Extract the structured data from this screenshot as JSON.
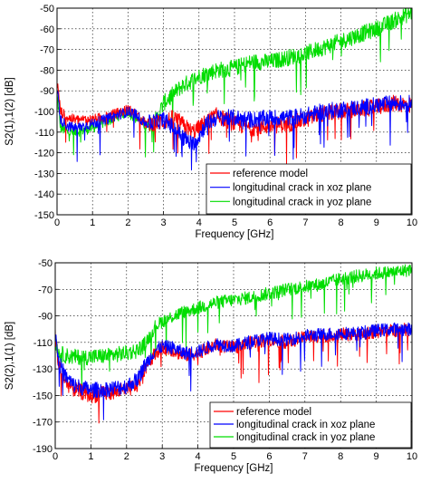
{
  "chart_data": [
    {
      "type": "line",
      "xlabel": "Frequency [GHz]",
      "ylabel": "S2(1),1(2) [dB]",
      "xlim": [
        0,
        10
      ],
      "ylim": [
        -150,
        -50
      ],
      "xticks": [
        "0",
        "1",
        "2",
        "3",
        "4",
        "5",
        "6",
        "7",
        "8",
        "9",
        "10"
      ],
      "yticks": [
        "-150",
        "-140",
        "-130",
        "-120",
        "-110",
        "-100",
        "-90",
        "-80",
        "-70",
        "-60",
        "-50"
      ],
      "grid": true,
      "legend_position": "bottom-right",
      "series": [
        {
          "name": "reference model",
          "color": "#ff0000",
          "x": [
            0,
            0.1,
            0.3,
            0.5,
            1.0,
            1.5,
            2.0,
            2.2,
            2.5,
            3.0,
            3.3,
            3.6,
            3.8,
            4.0,
            4.2,
            4.5,
            5.0,
            5.5,
            6.0,
            6.5,
            7.0,
            7.5,
            8.0,
            8.5,
            9.0,
            9.5,
            10.0
          ],
          "y": [
            -85,
            -100,
            -103,
            -104,
            -104,
            -102,
            -99,
            -101,
            -106,
            -105,
            -103,
            -107,
            -110,
            -108,
            -105,
            -102,
            -106,
            -108,
            -107,
            -106,
            -104,
            -101,
            -100,
            -99,
            -98,
            -96,
            -97
          ]
        },
        {
          "name": "longitudinal crack in xoz plane",
          "color": "#0000ff",
          "x": [
            0,
            0.1,
            0.3,
            0.5,
            1.0,
            1.5,
            2.0,
            2.2,
            2.5,
            3.0,
            3.3,
            3.6,
            3.8,
            4.0,
            4.2,
            4.5,
            5.0,
            5.5,
            6.0,
            6.5,
            7.0,
            7.5,
            8.0,
            8.5,
            9.0,
            9.5,
            10.0
          ],
          "y": [
            -88,
            -104,
            -107,
            -108,
            -106,
            -103,
            -100,
            -101,
            -106,
            -104,
            -108,
            -113,
            -116,
            -112,
            -106,
            -103,
            -103,
            -104,
            -103,
            -103,
            -102,
            -100,
            -99,
            -98,
            -97,
            -96,
            -96
          ]
        },
        {
          "name": "longitudinal crack in yoz plane",
          "color": "#00dd00",
          "x": [
            0,
            0.1,
            0.3,
            0.5,
            1.0,
            1.5,
            2.0,
            2.2,
            2.5,
            2.8,
            3.0,
            3.5,
            4.0,
            4.5,
            5.0,
            5.5,
            6.0,
            6.5,
            7.0,
            7.5,
            8.0,
            8.5,
            9.0,
            9.5,
            10.0
          ],
          "y": [
            -92,
            -108,
            -110,
            -110,
            -108,
            -104,
            -100,
            -103,
            -107,
            -104,
            -96,
            -88,
            -83,
            -80,
            -79,
            -76,
            -76,
            -74,
            -72,
            -69,
            -66,
            -63,
            -60,
            -56,
            -52
          ]
        }
      ]
    },
    {
      "type": "line",
      "xlabel": "Frequency [GHz]",
      "ylabel": "S2(2),1(1) [dB]",
      "xlim": [
        0,
        10
      ],
      "ylim": [
        -190,
        -50
      ],
      "xticks": [
        "0",
        "1",
        "2",
        "3",
        "4",
        "5",
        "6",
        "7",
        "8",
        "9",
        "10"
      ],
      "yticks": [
        "-190",
        "-170",
        "-150",
        "-130",
        "-110",
        "-90",
        "-70",
        "-50"
      ],
      "grid": true,
      "legend_position": "bottom-right",
      "series": [
        {
          "name": "reference model",
          "color": "#ff0000",
          "x": [
            0,
            0.1,
            0.3,
            0.5,
            1.0,
            1.5,
            2.0,
            2.3,
            2.5,
            2.8,
            3.0,
            3.3,
            3.6,
            4.0,
            4.5,
            5.0,
            5.5,
            6.0,
            6.5,
            7.0,
            7.5,
            8.0,
            8.5,
            9.0,
            9.5,
            10.0
          ],
          "y": [
            -105,
            -128,
            -140,
            -145,
            -150,
            -148,
            -146,
            -142,
            -130,
            -118,
            -114,
            -116,
            -120,
            -118,
            -112,
            -114,
            -110,
            -108,
            -110,
            -106,
            -105,
            -104,
            -104,
            -102,
            -101,
            -100
          ]
        },
        {
          "name": "longitudinal crack in xoz plane",
          "color": "#0000ff",
          "x": [
            0,
            0.1,
            0.3,
            0.5,
            1.0,
            1.5,
            2.0,
            2.3,
            2.5,
            2.8,
            3.0,
            3.3,
            3.6,
            4.0,
            4.5,
            5.0,
            5.5,
            6.0,
            6.5,
            7.0,
            7.5,
            8.0,
            8.5,
            9.0,
            9.5,
            10.0
          ],
          "y": [
            -102,
            -125,
            -136,
            -142,
            -146,
            -145,
            -143,
            -138,
            -128,
            -116,
            -113,
            -114,
            -118,
            -117,
            -111,
            -113,
            -109,
            -107,
            -108,
            -105,
            -104,
            -103,
            -103,
            -101,
            -100,
            -100
          ]
        },
        {
          "name": "longitudinal crack in yoz plane",
          "color": "#00dd00",
          "x": [
            0,
            0.1,
            0.3,
            0.5,
            1.0,
            1.5,
            2.0,
            2.3,
            2.5,
            2.8,
            3.0,
            3.5,
            4.0,
            4.5,
            5.0,
            5.5,
            6.0,
            6.5,
            7.0,
            7.5,
            8.0,
            8.5,
            9.0,
            9.5,
            10.0
          ],
          "y": [
            -108,
            -118,
            -120,
            -121,
            -121,
            -120,
            -118,
            -116,
            -112,
            -98,
            -94,
            -88,
            -84,
            -80,
            -78,
            -76,
            -73,
            -70,
            -68,
            -66,
            -62,
            -60,
            -58,
            -57,
            -55
          ]
        }
      ]
    }
  ]
}
